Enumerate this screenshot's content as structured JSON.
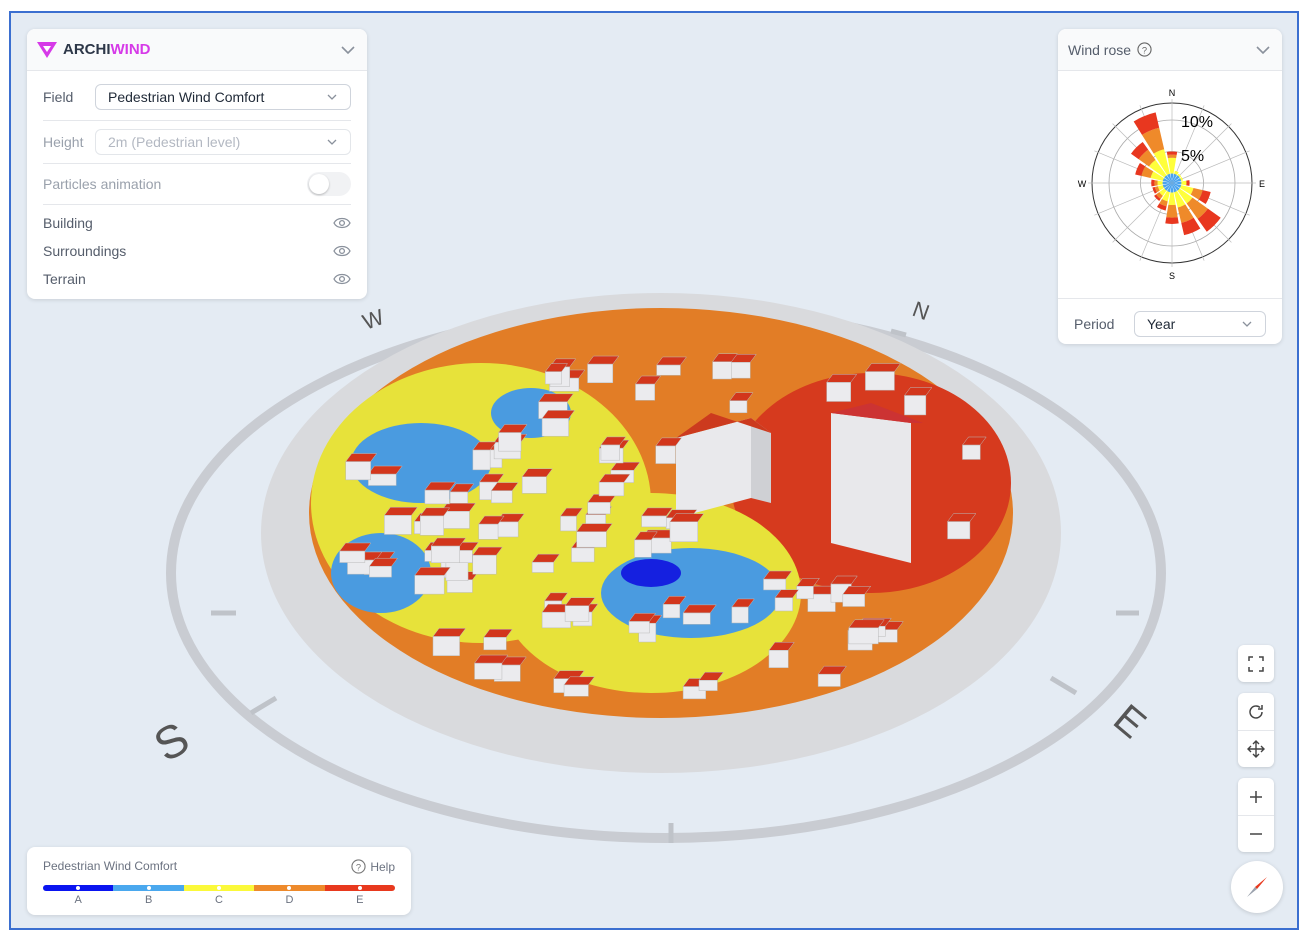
{
  "app": {
    "brand_prefix": "ARCHI",
    "brand_suffix": "WIND",
    "brand_color": "#d63ae8"
  },
  "controls": {
    "field_label": "Field",
    "field_value": "Pedestrian Wind Comfort",
    "height_label": "Height",
    "height_value": "2m (Pedestrian level)",
    "particles_label": "Particles animation",
    "particles_on": false,
    "layers": [
      {
        "label": "Building",
        "visible": true
      },
      {
        "label": "Surroundings",
        "visible": true
      },
      {
        "label": "Terrain",
        "visible": true
      }
    ]
  },
  "compass": {
    "w": "W",
    "n": "N",
    "e": "E",
    "s": "S"
  },
  "windrose": {
    "title": "Wind rose",
    "period_label": "Period",
    "period_value": "Year",
    "dir_labels": {
      "n": "N",
      "e": "E",
      "s": "S",
      "w": "W"
    },
    "ring_labels": [
      "5%",
      "10%"
    ],
    "colors": [
      "#4aa3ee",
      "#ffff3b",
      "#ef8a2a",
      "#e8371f"
    ]
  },
  "chart_data": {
    "type": "windrose",
    "directions": [
      "N",
      "NNE",
      "NE",
      "ENE",
      "E",
      "ESE",
      "SE",
      "SSE",
      "S",
      "SSW",
      "SW",
      "WSW",
      "W",
      "WNW",
      "NW",
      "NNW"
    ],
    "series": [
      {
        "values": [
          1.5,
          1.5,
          1.5,
          1.5,
          1.5,
          1.5,
          1.5,
          1.5,
          1.5,
          1.5,
          1.5,
          1.5,
          1.5,
          1.5,
          1.5,
          1.5
        ]
      },
      {
        "values": [
          2.5,
          0.5,
          0.3,
          0.3,
          0.8,
          2,
          2.5,
          2.5,
          2,
          1.5,
          1,
          0.8,
          0.8,
          2,
          3,
          4
        ]
      },
      {
        "values": [
          0.5,
          0,
          0,
          0,
          0,
          1.5,
          3,
          2.5,
          2,
          0.8,
          0.6,
          0.5,
          0.5,
          1.5,
          2,
          3.5
        ]
      },
      {
        "values": [
          0.5,
          0,
          0,
          0,
          0.5,
          1.3,
          2.5,
          2,
          1,
          0.7,
          0.4,
          0.4,
          0.5,
          1,
          1.5,
          2.5
        ]
      }
    ],
    "ticks": [
      "5%",
      "10%"
    ]
  },
  "legend": {
    "title": "Pedestrian Wind Comfort",
    "help": "Help",
    "classes": [
      {
        "label": "A",
        "color": "#0a14f0"
      },
      {
        "label": "B",
        "color": "#4aa8ee"
      },
      {
        "label": "C",
        "color": "#fbf93a"
      },
      {
        "label": "D",
        "color": "#ee8a2b"
      },
      {
        "label": "E",
        "color": "#e8391e"
      }
    ]
  }
}
